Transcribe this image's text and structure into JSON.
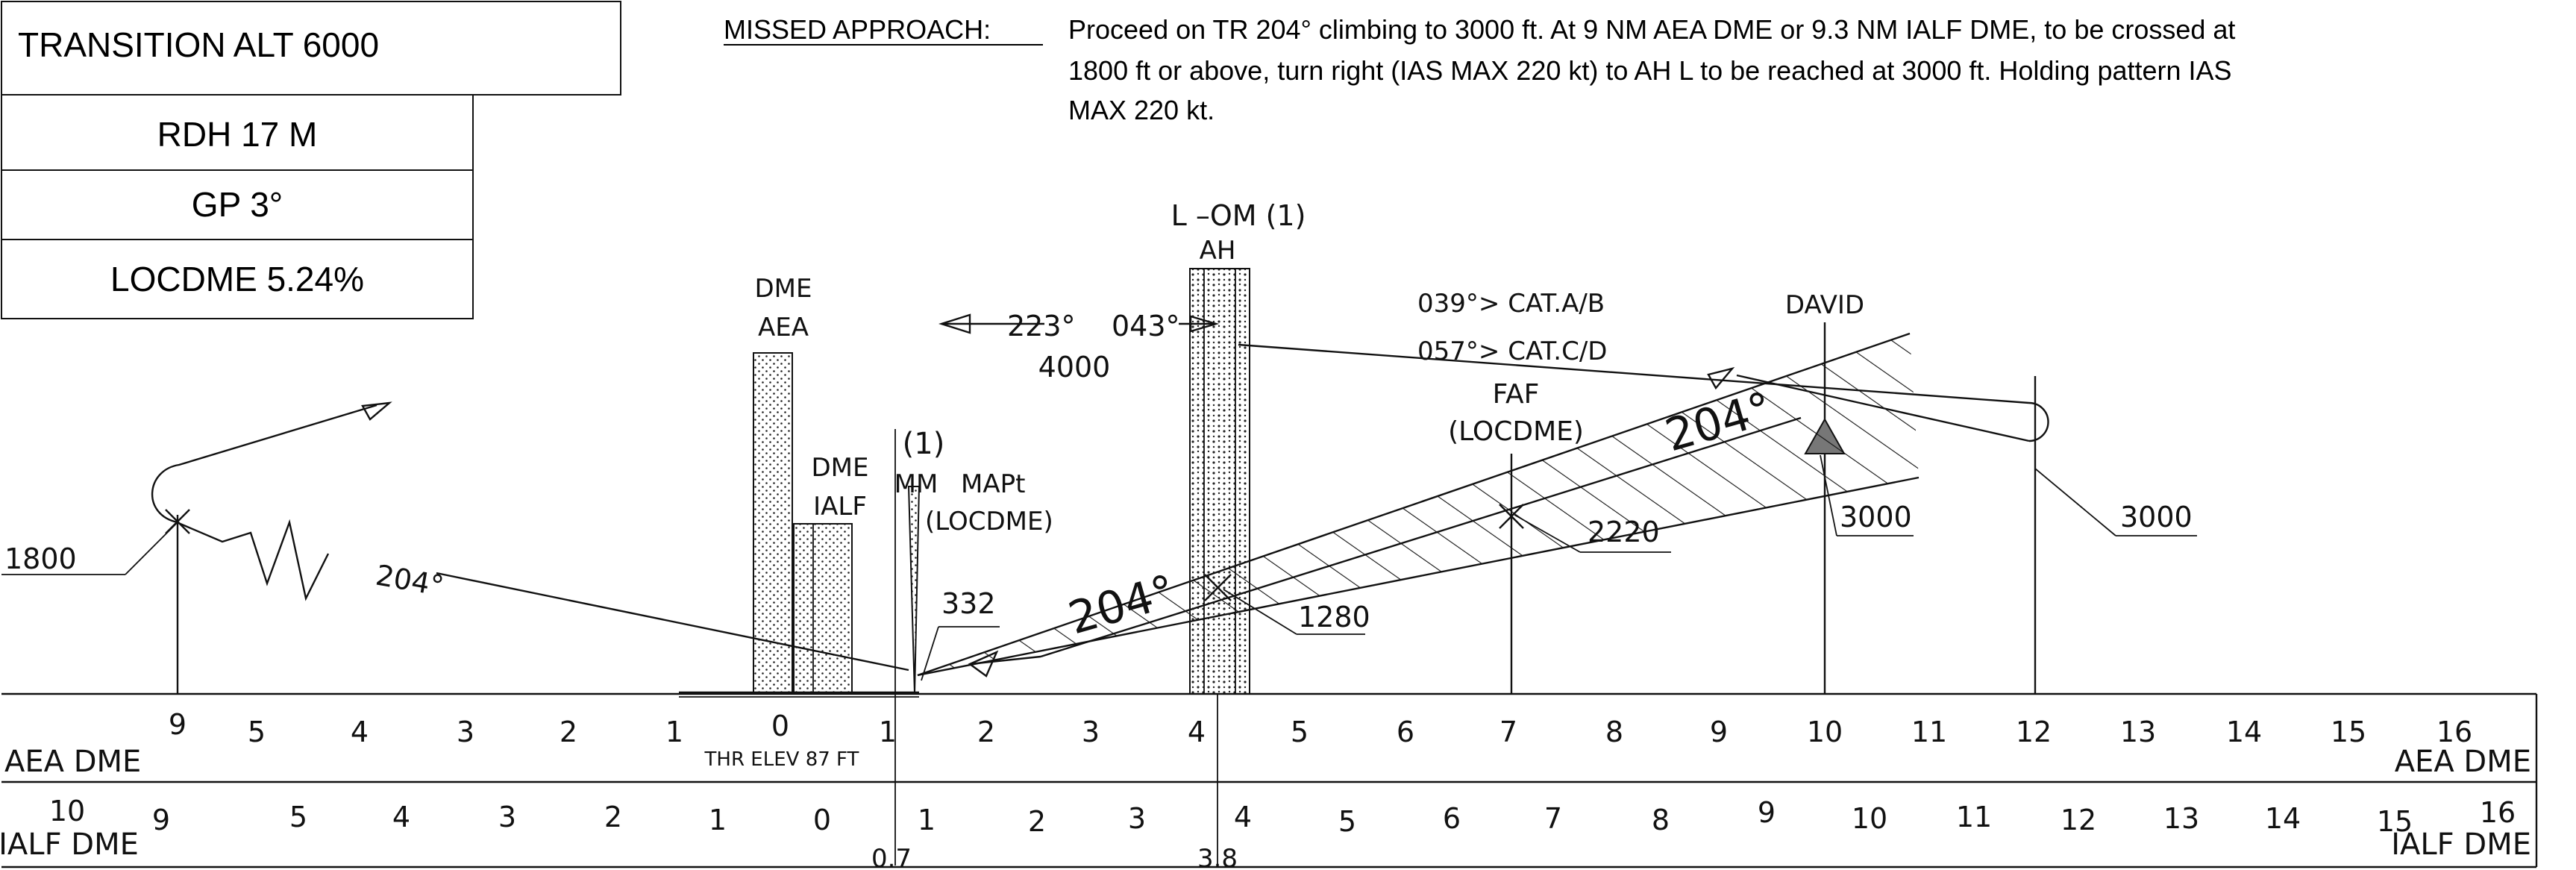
{
  "info_boxes": {
    "transition_alt": "TRANSITION ALT 6000",
    "rdh": "RDH 17 M",
    "gp": "GP 3°",
    "locdme": "LOCDME 5.24%"
  },
  "missed_approach": {
    "label": "MISSED APPROACH:",
    "lines": [
      "Proceed on TR 204° climbing to 3000 ft. At 9 NM AEA DME or 9.3 NM IALF DME, to be crossed at",
      "1800 ft or above, turn right (IAS MAX 220 kt) to AH L to be reached at 3000 ft. Holding pattern IAS",
      "MAX 220 kt."
    ]
  },
  "profile": {
    "dme_aea": [
      "DME",
      "AEA"
    ],
    "dme_ialf": [
      "DME",
      "IALF"
    ],
    "mm_mapt": [
      "(1)",
      "MM",
      "MAPt",
      "(LOCDME)"
    ],
    "om": [
      "L  –OM (1)",
      "AH"
    ],
    "holding": {
      "inbound": "223°",
      "outbound": "043°",
      "altitude": "4000"
    },
    "cat_ab": "039°> CAT.A/B",
    "cat_cd": "057°> CAT.C/D",
    "david": "DAVID",
    "faf": [
      "FAF",
      "(LOCDME)"
    ],
    "track_right": "204°",
    "track_center": "204°",
    "track_left": "204°",
    "alt_1800": "1800",
    "alt_332": "332",
    "alt_1280": "1280",
    "alt_2220": "2220",
    "alt_3000_a": "3000",
    "alt_3000_b": "3000"
  },
  "scale_top": {
    "name_left": "AEA  DME",
    "name_right": "AEA  DME",
    "ticks": [
      "9",
      "5",
      "4",
      "3",
      "2",
      "1",
      "0",
      "1",
      "2",
      "3",
      "4",
      "5",
      "6",
      "7",
      "8",
      "9",
      "10",
      "11",
      "12",
      "13",
      "14",
      "15",
      "16"
    ],
    "thr_elev": "THR ELEV 87 FT"
  },
  "scale_bottom": {
    "name_left": "IALF  DME",
    "name_right": "IALF  DME",
    "ticks": [
      "10",
      "9",
      "5",
      "4",
      "3",
      "2",
      "1",
      "0",
      "1",
      "2",
      "3",
      "4",
      "5",
      "6",
      "7",
      "8",
      "9",
      "10",
      "11",
      "12",
      "13",
      "14",
      "15",
      "16"
    ],
    "mark_07": "0.7",
    "mark_38": "3.8"
  }
}
